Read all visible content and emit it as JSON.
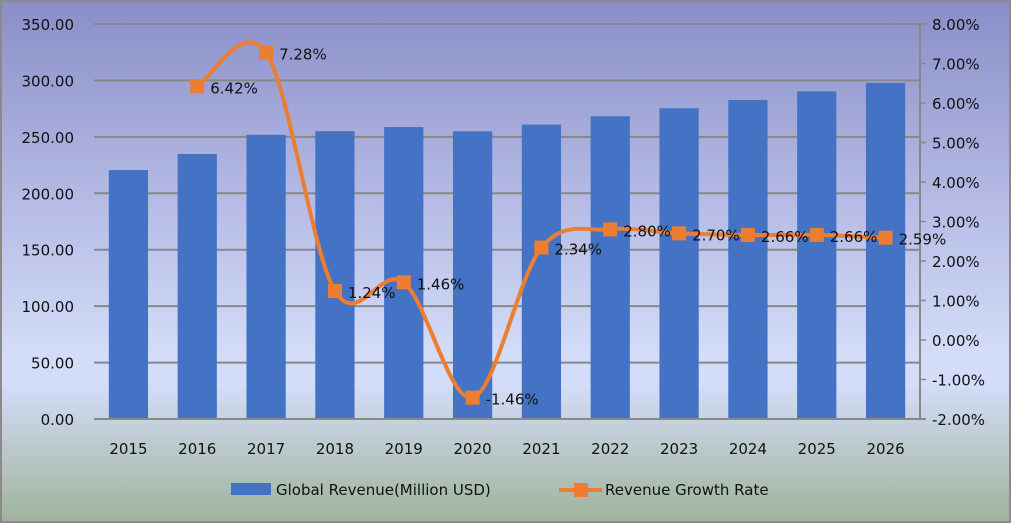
{
  "chart_data": {
    "type": "bar+line",
    "title": "",
    "categories": [
      "2015",
      "2016",
      "2017",
      "2018",
      "2019",
      "2020",
      "2021",
      "2022",
      "2023",
      "2024",
      "2025",
      "2026"
    ],
    "series": [
      {
        "name": "Global Revenue(Million USD)",
        "type": "bar",
        "axis": "left",
        "color": "#4472c4",
        "values": [
          220.6,
          234.8,
          251.9,
          255.0,
          258.7,
          254.9,
          260.9,
          268.2,
          275.4,
          282.7,
          290.3,
          297.8
        ]
      },
      {
        "name": "Revenue Growth Rate",
        "type": "line",
        "axis": "right",
        "color": "#ed7d31",
        "values": [
          null,
          6.42,
          7.28,
          1.24,
          1.46,
          -1.46,
          2.34,
          2.8,
          2.7,
          2.66,
          2.66,
          2.59
        ],
        "labels": [
          null,
          "6.42%",
          "7.28%",
          "1.24%",
          "1.46%",
          "-1.46%",
          "2.34%",
          "2.80%",
          "2.70%",
          "2.66%",
          "2.66%",
          "2.59%"
        ]
      }
    ],
    "y_left": {
      "range": [
        0,
        350
      ],
      "ticks": [
        "0.00",
        "50.00",
        "100.00",
        "150.00",
        "200.00",
        "250.00",
        "300.00",
        "350.00"
      ]
    },
    "y_right": {
      "range": [
        -2,
        8
      ],
      "ticks": [
        "-2.00%",
        "-1.00%",
        "0.00%",
        "1.00%",
        "2.00%",
        "3.00%",
        "4.00%",
        "5.00%",
        "6.00%",
        "7.00%",
        "8.00%"
      ]
    },
    "grid": true,
    "legend_position": "bottom"
  }
}
